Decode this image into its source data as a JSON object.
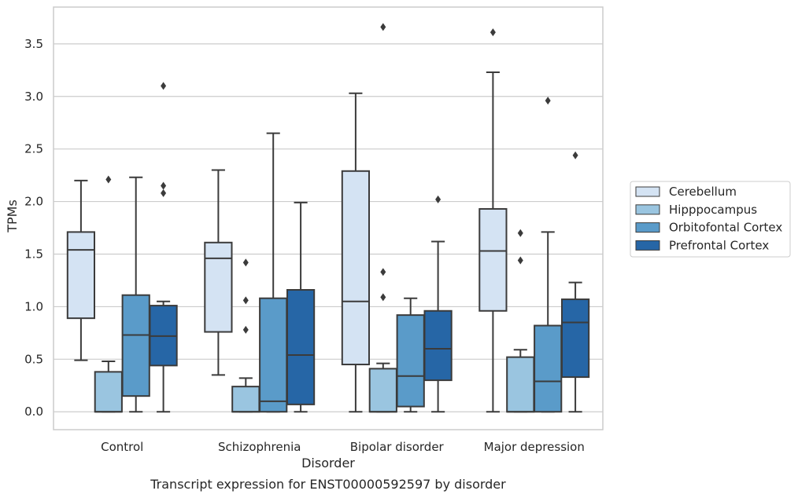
{
  "chart_data": {
    "type": "box",
    "title": "",
    "caption": "Transcript expression for ENST00000592597 by disorder",
    "xlabel": "Disorder",
    "ylabel": "TPMs",
    "ylim": [
      -0.17,
      3.85
    ],
    "yticks": [
      "0.0",
      "0.5",
      "1.0",
      "1.5",
      "2.0",
      "2.5",
      "3.0",
      "3.5"
    ],
    "grid": "horizontal",
    "legend_position": "right",
    "categories": [
      "Control",
      "Schizophrenia",
      "Bipolar disorder",
      "Major depression"
    ],
    "series": [
      {
        "name": "Cerebellum",
        "color": "#d4e3f3",
        "boxes": [
          {
            "whisker_low": 0.49,
            "q1": 0.89,
            "median": 1.54,
            "q3": 1.71,
            "whisker_high": 2.2,
            "outliers": []
          },
          {
            "whisker_low": 0.35,
            "q1": 0.76,
            "median": 1.46,
            "q3": 1.61,
            "whisker_high": 2.3,
            "outliers": []
          },
          {
            "whisker_low": 0.0,
            "q1": 0.45,
            "median": 1.05,
            "q3": 2.29,
            "whisker_high": 3.03,
            "outliers": []
          },
          {
            "whisker_low": 0.0,
            "q1": 0.96,
            "median": 1.53,
            "q3": 1.93,
            "whisker_high": 3.23,
            "outliers": [
              3.61
            ]
          }
        ]
      },
      {
        "name": "Hipppocampus",
        "color": "#9ac5e0",
        "boxes": [
          {
            "whisker_low": 0.0,
            "q1": 0.0,
            "median": 0.0,
            "q3": 0.38,
            "whisker_high": 0.48,
            "outliers": [
              2.21
            ]
          },
          {
            "whisker_low": 0.0,
            "q1": 0.0,
            "median": 0.0,
            "q3": 0.24,
            "whisker_high": 0.32,
            "outliers": [
              0.78,
              1.06,
              1.42
            ]
          },
          {
            "whisker_low": 0.0,
            "q1": 0.0,
            "median": 0.0,
            "q3": 0.41,
            "whisker_high": 0.46,
            "outliers": [
              1.09,
              1.33,
              3.66
            ]
          },
          {
            "whisker_low": 0.0,
            "q1": 0.0,
            "median": 0.0,
            "q3": 0.52,
            "whisker_high": 0.59,
            "outliers": [
              1.44,
              1.7
            ]
          }
        ]
      },
      {
        "name": "Orbitofontal Cortex",
        "color": "#5a9bc9",
        "boxes": [
          {
            "whisker_low": 0.0,
            "q1": 0.15,
            "median": 0.73,
            "q3": 1.11,
            "whisker_high": 2.23,
            "outliers": []
          },
          {
            "whisker_low": 0.0,
            "q1": 0.0,
            "median": 0.1,
            "q3": 1.08,
            "whisker_high": 2.65,
            "outliers": []
          },
          {
            "whisker_low": 0.0,
            "q1": 0.05,
            "median": 0.34,
            "q3": 0.92,
            "whisker_high": 1.08,
            "outliers": []
          },
          {
            "whisker_low": 0.0,
            "q1": 0.0,
            "median": 0.29,
            "q3": 0.82,
            "whisker_high": 1.71,
            "outliers": [
              2.96
            ]
          }
        ]
      },
      {
        "name": "Prefrontal Cortex",
        "color": "#2666a6",
        "boxes": [
          {
            "whisker_low": 0.0,
            "q1": 0.44,
            "median": 0.72,
            "q3": 1.01,
            "whisker_high": 1.05,
            "outliers": [
              2.08,
              2.15,
              3.1
            ]
          },
          {
            "whisker_low": 0.0,
            "q1": 0.07,
            "median": 0.54,
            "q3": 1.16,
            "whisker_high": 1.99,
            "outliers": []
          },
          {
            "whisker_low": 0.0,
            "q1": 0.3,
            "median": 0.6,
            "q3": 0.96,
            "whisker_high": 1.62,
            "outliers": [
              2.02
            ]
          },
          {
            "whisker_low": 0.0,
            "q1": 0.33,
            "median": 0.85,
            "q3": 1.07,
            "whisker_high": 1.23,
            "outliers": [
              2.44
            ]
          }
        ]
      }
    ]
  }
}
